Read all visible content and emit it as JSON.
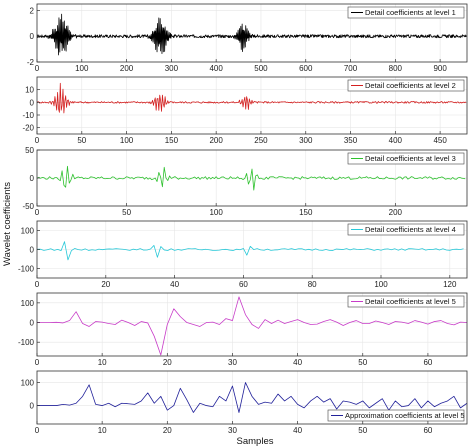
{
  "figure": {
    "ylabel": "Wavelet coefficients",
    "xlabel": "Samples"
  },
  "chart_data": [
    {
      "type": "line",
      "legend": "Detail coefficients at level 1",
      "legend_position": "top-right",
      "color": "#000000",
      "xlim": [
        0,
        960
      ],
      "ylim": [
        -2,
        2.5
      ],
      "xticks": [
        0,
        100,
        200,
        300,
        400,
        500,
        600,
        700,
        800,
        900
      ],
      "yticks": [
        -2,
        0,
        2
      ],
      "noise": 0.12,
      "bursts": [
        {
          "x": 55,
          "amp": 1.9,
          "width": 24
        },
        {
          "x": 275,
          "amp": 1.7,
          "width": 24
        },
        {
          "x": 460,
          "amp": 1.2,
          "width": 18
        }
      ],
      "n_points": 960,
      "grid": true
    },
    {
      "type": "line",
      "legend": "Detail coefficients at level 2",
      "legend_position": "top-right",
      "color": "#d42020",
      "xlim": [
        0,
        480
      ],
      "ylim": [
        -25,
        20
      ],
      "xticks": [
        0,
        50,
        100,
        150,
        200,
        250,
        300,
        350,
        400,
        450
      ],
      "yticks": [
        -20,
        -10,
        0,
        10
      ],
      "noise": 0.7,
      "bursts": [
        {
          "x": 27,
          "amp": 15,
          "width": 10
        },
        {
          "x": 137,
          "amp": 9,
          "width": 10
        },
        {
          "x": 233,
          "amp": 8,
          "width": 8
        }
      ],
      "n_points": 480,
      "grid": true
    },
    {
      "type": "line",
      "legend": "Detail coefficients at level 3",
      "legend_position": "top-right",
      "color": "#2ec12e",
      "xlim": [
        0,
        240
      ],
      "ylim": [
        -50,
        50
      ],
      "xticks": [
        0,
        50,
        100,
        150,
        200
      ],
      "yticks": [
        -50,
        0,
        50
      ],
      "noise": 2.5,
      "bursts": [
        {
          "x": 16,
          "amp": 30,
          "width": 5
        },
        {
          "x": 70,
          "amp": 22,
          "width": 5
        },
        {
          "x": 120,
          "amp": 24,
          "width": 5
        }
      ],
      "n_points": 240,
      "grid": true
    },
    {
      "type": "line",
      "legend": "Detail coefficients at level 4",
      "legend_position": "top-right",
      "color": "#28c8d8",
      "xlim": [
        0,
        125
      ],
      "ylim": [
        -150,
        150
      ],
      "xticks": [
        0,
        20,
        40,
        60,
        80,
        100,
        120
      ],
      "yticks": [
        -100,
        0,
        100
      ],
      "noise": 5,
      "bursts": [
        {
          "x": 9,
          "amp": 95,
          "width": 2
        },
        {
          "x": 35,
          "amp": 65,
          "width": 2
        },
        {
          "x": 61,
          "amp": 45,
          "width": 2
        }
      ],
      "n_points": 125,
      "grid": true
    },
    {
      "type": "line",
      "legend": "Detail coefficients at level 5",
      "legend_position": "top-right",
      "color": "#c83cc8",
      "xlim": [
        0,
        66
      ],
      "ylim": [
        -170,
        150
      ],
      "xticks": [
        0,
        10,
        20,
        30,
        40,
        50,
        60
      ],
      "yticks": [
        -100,
        0,
        100
      ],
      "x": [
        0,
        1,
        2,
        3,
        4,
        5,
        6,
        7,
        8,
        9,
        10,
        11,
        12,
        13,
        14,
        15,
        16,
        17,
        18,
        19,
        20,
        21,
        22,
        23,
        24,
        25,
        26,
        27,
        28,
        29,
        30,
        31,
        32,
        33,
        34,
        35,
        36,
        37,
        38,
        39,
        40,
        41,
        42,
        43,
        44,
        45,
        46,
        47,
        48,
        49,
        50,
        51,
        52,
        53,
        54,
        55,
        56,
        57,
        58,
        59,
        60,
        61,
        62,
        63,
        64,
        65,
        66
      ],
      "y": [
        0,
        0,
        0,
        1,
        -2,
        10,
        55,
        -5,
        -20,
        5,
        2,
        -5,
        -10,
        12,
        0,
        -15,
        5,
        -2,
        -70,
        -165,
        -10,
        70,
        30,
        0,
        -10,
        -20,
        0,
        2,
        -10,
        20,
        10,
        130,
        40,
        -10,
        -30,
        15,
        -5,
        12,
        -5,
        5,
        15,
        0,
        -10,
        -8,
        5,
        15,
        2,
        -15,
        0,
        10,
        -5,
        -5,
        8,
        0,
        -10,
        5,
        2,
        -5,
        10,
        2,
        -8,
        5,
        10,
        -5,
        -12,
        2,
        0
      ],
      "grid": true
    },
    {
      "type": "line",
      "legend": "Approximation coefficients at level 5",
      "legend_position": "bottom-right",
      "color": "#22229a",
      "xlim": [
        0,
        66
      ],
      "ylim": [
        -80,
        150
      ],
      "xticks": [
        0,
        10,
        20,
        30,
        40,
        50,
        60
      ],
      "yticks": [
        0,
        100
      ],
      "x": [
        0,
        1,
        2,
        3,
        4,
        5,
        6,
        7,
        8,
        9,
        10,
        11,
        12,
        13,
        14,
        15,
        16,
        17,
        18,
        19,
        20,
        21,
        22,
        23,
        24,
        25,
        26,
        27,
        28,
        29,
        30,
        31,
        32,
        33,
        34,
        35,
        36,
        37,
        38,
        39,
        40,
        41,
        42,
        43,
        44,
        45,
        46,
        47,
        48,
        49,
        50,
        51,
        52,
        53,
        54,
        55,
        56,
        57,
        58,
        59,
        60,
        61,
        62,
        63,
        64,
        65,
        66
      ],
      "y": [
        0,
        0,
        0,
        0,
        5,
        2,
        10,
        40,
        90,
        5,
        0,
        10,
        -5,
        10,
        8,
        5,
        20,
        55,
        10,
        40,
        -20,
        0,
        75,
        25,
        -30,
        10,
        0,
        -5,
        40,
        20,
        85,
        -30,
        100,
        40,
        5,
        15,
        10,
        50,
        20,
        40,
        5,
        -10,
        20,
        40,
        15,
        30,
        -15,
        20,
        15,
        5,
        20,
        -10,
        10,
        30,
        -20,
        20,
        -5,
        0,
        30,
        -10,
        20,
        -5,
        10,
        20,
        40,
        -10,
        10
      ],
      "grid": true
    }
  ]
}
